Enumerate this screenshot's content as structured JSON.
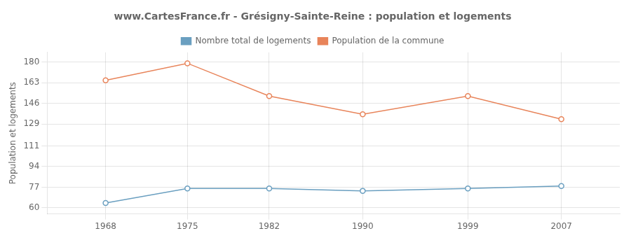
{
  "chart_data": {
    "type": "line",
    "title": "www.CartesFrance.fr - Grésigny-Sainte-Reine : population et logements",
    "ylabel": "Population et logements",
    "x": [
      1968,
      1975,
      1982,
      1990,
      1999,
      2007
    ],
    "series": [
      {
        "name": "Population de la commune",
        "color": "#e8845a",
        "marker": "circle",
        "values": [
          165,
          179,
          152,
          137,
          152,
          133
        ]
      },
      {
        "name": "Nombre total de logements",
        "color": "#6a9fc0",
        "marker": "circle",
        "values": [
          64,
          76,
          76,
          74,
          76,
          78
        ]
      }
    ],
    "xlim": [
      1963,
      2012
    ],
    "xticks": [
      1968,
      1975,
      1982,
      1990,
      1999,
      2007
    ],
    "ylim": [
      55,
      188
    ],
    "yticks": [
      60,
      77,
      94,
      111,
      129,
      146,
      163,
      180
    ],
    "grid": true,
    "legend": "top"
  }
}
